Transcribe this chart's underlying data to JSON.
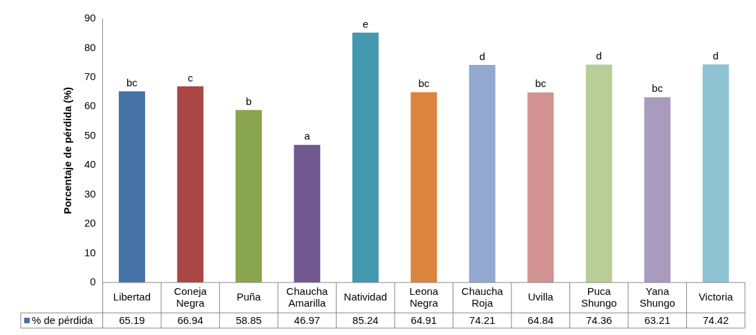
{
  "chart_data": {
    "type": "bar",
    "ylabel": "Porcentaje de pérdida (%)",
    "categories": [
      "Libertad",
      "Coneja Negra",
      "Puña",
      "Chaucha Amarilla",
      "Natividad",
      "Leona Negra",
      "Chaucha Roja",
      "Uvilla",
      "Puca Shungo",
      "Yana Shungo",
      "Victoria"
    ],
    "series": [
      {
        "name": "% de pérdida",
        "color": "#4572a7",
        "values": [
          65.19,
          66.94,
          58.85,
          46.97,
          85.24,
          64.91,
          74.21,
          64.84,
          74.36,
          63.21,
          74.42
        ],
        "colors": [
          "#4572a7",
          "#aa4643",
          "#89a54e",
          "#71588f",
          "#4198af",
          "#db843d",
          "#93a9cf",
          "#d19392",
          "#b9cd96",
          "#a99bbd",
          "#8ec3d3"
        ]
      }
    ],
    "ylim": [
      0,
      90
    ],
    "yticks": [
      0,
      10,
      20,
      30,
      40,
      50,
      60,
      70,
      80,
      90
    ],
    "grid": false,
    "data_labels": true,
    "annotations": [
      {
        "text": "bc",
        "x": "Libertad",
        "y": 65.19
      },
      {
        "text": "c",
        "x": "Coneja Negra",
        "y": 66.94
      },
      {
        "text": "b",
        "x": "Puña",
        "y": 58.85
      },
      {
        "text": "a",
        "x": "Chaucha Amarilla",
        "y": 46.97
      },
      {
        "text": "e",
        "x": "Natividad",
        "y": 85.24
      },
      {
        "text": "bc",
        "x": "Leona Negra",
        "y": 64.91
      },
      {
        "text": "d",
        "x": "Chaucha Roja",
        "y": 74.21
      },
      {
        "text": "bc",
        "x": "Uvilla",
        "y": 64.84
      },
      {
        "text": "d",
        "x": "Puca Shungo",
        "y": 74.36
      },
      {
        "text": "bc",
        "x": "Yana Shungo",
        "y": 63.21
      },
      {
        "text": "d",
        "x": "Victoria",
        "y": 74.42
      }
    ]
  }
}
